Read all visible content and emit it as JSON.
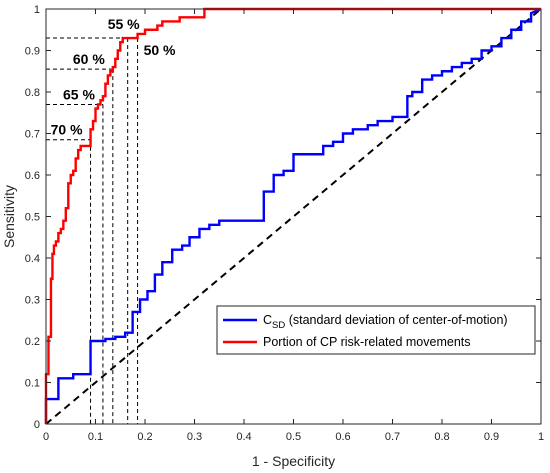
{
  "chart_data": {
    "type": "line",
    "title": "",
    "xlabel": "1 - Specificity",
    "ylabel": "Sensitivity",
    "xlim": [
      0,
      1
    ],
    "ylim": [
      0,
      1
    ],
    "xticks": [
      "0",
      "0.1",
      "0.2",
      "0.3",
      "0.4",
      "0.5",
      "0.6",
      "0.7",
      "0.8",
      "0.9",
      "1"
    ],
    "yticks": [
      "0",
      "0.1",
      "0.2",
      "0.3",
      "0.4",
      "0.5",
      "0.6",
      "0.7",
      "0.8",
      "0.9",
      "1"
    ],
    "grid": false,
    "legend_position": "bottom-right",
    "series": [
      {
        "name_main": "C",
        "name_sub": "SD",
        "name_rest": " (standard deviation of center-of-motion)",
        "color": "#0000ff",
        "x": [
          0,
          0,
          0.025,
          0.025,
          0.055,
          0.055,
          0.09,
          0.09,
          0.12,
          0.12,
          0.14,
          0.14,
          0.16,
          0.16,
          0.175,
          0.175,
          0.19,
          0.19,
          0.205,
          0.205,
          0.22,
          0.22,
          0.235,
          0.235,
          0.255,
          0.255,
          0.275,
          0.275,
          0.29,
          0.29,
          0.31,
          0.31,
          0.33,
          0.33,
          0.35,
          0.35,
          0.37,
          0.37,
          0.39,
          0.39,
          0.41,
          0.41,
          0.44,
          0.44,
          0.46,
          0.46,
          0.48,
          0.48,
          0.5,
          0.5,
          0.53,
          0.53,
          0.56,
          0.56,
          0.58,
          0.58,
          0.6,
          0.6,
          0.62,
          0.62,
          0.65,
          0.65,
          0.67,
          0.67,
          0.69,
          0.69,
          0.7,
          0.7,
          0.73,
          0.73,
          0.74,
          0.74,
          0.76,
          0.76,
          0.78,
          0.78,
          0.8,
          0.8,
          0.82,
          0.82,
          0.84,
          0.84,
          0.86,
          0.86,
          0.88,
          0.88,
          0.9,
          0.9,
          0.92,
          0.92,
          0.94,
          0.94,
          0.96,
          0.96,
          0.98,
          0.98,
          1
        ],
        "y": [
          0,
          0.06,
          0.06,
          0.11,
          0.11,
          0.12,
          0.12,
          0.2,
          0.2,
          0.205,
          0.205,
          0.21,
          0.21,
          0.22,
          0.22,
          0.27,
          0.27,
          0.3,
          0.3,
          0.32,
          0.32,
          0.36,
          0.36,
          0.39,
          0.39,
          0.42,
          0.42,
          0.43,
          0.43,
          0.45,
          0.45,
          0.47,
          0.47,
          0.48,
          0.48,
          0.49,
          0.49,
          0.49,
          0.49,
          0.49,
          0.49,
          0.49,
          0.49,
          0.56,
          0.56,
          0.6,
          0.6,
          0.61,
          0.61,
          0.65,
          0.65,
          0.65,
          0.65,
          0.67,
          0.67,
          0.68,
          0.68,
          0.7,
          0.7,
          0.71,
          0.71,
          0.72,
          0.72,
          0.73,
          0.73,
          0.73,
          0.73,
          0.74,
          0.74,
          0.79,
          0.79,
          0.8,
          0.8,
          0.83,
          0.83,
          0.84,
          0.84,
          0.85,
          0.85,
          0.86,
          0.86,
          0.87,
          0.87,
          0.88,
          0.88,
          0.9,
          0.9,
          0.91,
          0.91,
          0.93,
          0.93,
          0.95,
          0.95,
          0.97,
          0.97,
          0.99,
          1
        ]
      },
      {
        "name": "Portion of CP risk-related movements",
        "color": "#ff0000",
        "x": [
          0,
          0,
          0.005,
          0.005,
          0.01,
          0.01,
          0.013,
          0.013,
          0.016,
          0.016,
          0.02,
          0.02,
          0.025,
          0.025,
          0.03,
          0.03,
          0.035,
          0.035,
          0.04,
          0.04,
          0.045,
          0.045,
          0.05,
          0.05,
          0.055,
          0.055,
          0.06,
          0.06,
          0.065,
          0.065,
          0.07,
          0.07,
          0.09,
          0.09,
          0.095,
          0.095,
          0.1,
          0.1,
          0.105,
          0.105,
          0.11,
          0.11,
          0.115,
          0.115,
          0.12,
          0.12,
          0.125,
          0.125,
          0.13,
          0.13,
          0.135,
          0.135,
          0.14,
          0.14,
          0.145,
          0.145,
          0.15,
          0.15,
          0.155,
          0.155,
          0.16,
          0.16,
          0.185,
          0.185,
          0.2,
          0.2,
          0.225,
          0.225,
          0.235,
          0.235,
          0.27,
          0.27,
          0.32,
          0.32,
          1
        ],
        "y": [
          0,
          0.12,
          0.12,
          0.21,
          0.21,
          0.35,
          0.35,
          0.41,
          0.41,
          0.43,
          0.43,
          0.44,
          0.44,
          0.46,
          0.46,
          0.47,
          0.47,
          0.49,
          0.49,
          0.52,
          0.52,
          0.58,
          0.58,
          0.6,
          0.6,
          0.61,
          0.61,
          0.64,
          0.64,
          0.66,
          0.66,
          0.67,
          0.67,
          0.71,
          0.71,
          0.73,
          0.73,
          0.76,
          0.76,
          0.77,
          0.77,
          0.78,
          0.78,
          0.79,
          0.79,
          0.82,
          0.82,
          0.84,
          0.84,
          0.85,
          0.85,
          0.86,
          0.86,
          0.88,
          0.88,
          0.9,
          0.9,
          0.92,
          0.92,
          0.93,
          0.93,
          0.93,
          0.93,
          0.94,
          0.94,
          0.95,
          0.95,
          0.96,
          0.96,
          0.97,
          0.97,
          0.98,
          0.98,
          1,
          1
        ]
      }
    ],
    "reference_line": {
      "x": [
        0,
        1
      ],
      "y": [
        0,
        1
      ],
      "style": "dashed",
      "color": "#000000"
    },
    "operating_points": [
      {
        "label": "70 %",
        "x": 0.09,
        "y": 0.685,
        "label_side": "left"
      },
      {
        "label": "65 %",
        "x": 0.115,
        "y": 0.77,
        "label_side": "left"
      },
      {
        "label": "60 %",
        "x": 0.135,
        "y": 0.855,
        "label_side": "left"
      },
      {
        "label": "55 %",
        "x": 0.165,
        "y": 0.93,
        "label_side": "above"
      },
      {
        "label": "50 %",
        "x": 0.185,
        "y": 0.93,
        "label_side": "right"
      }
    ]
  }
}
